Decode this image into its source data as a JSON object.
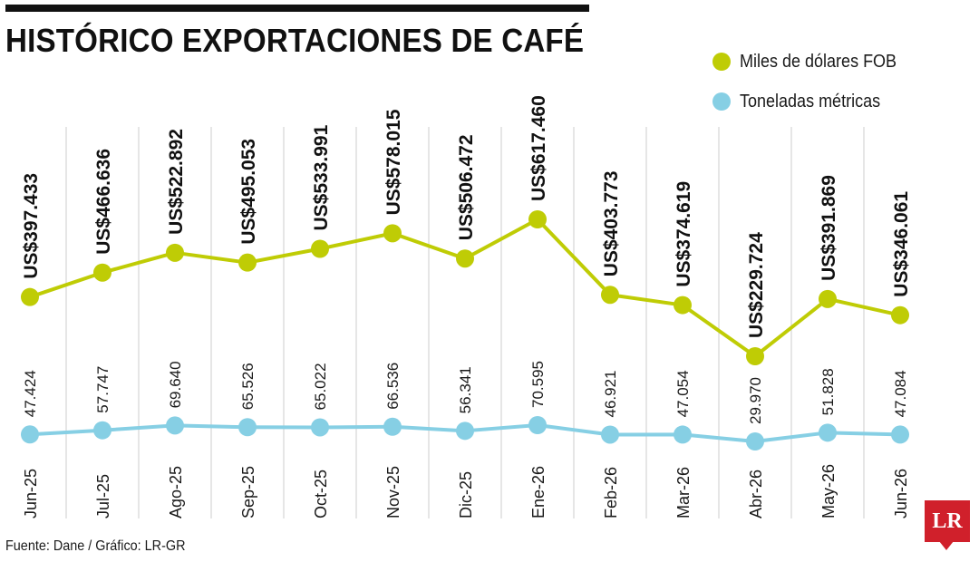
{
  "title": "HISTÓRICO EXPORTACIONES DE CAFÉ",
  "source": "Fuente: Dane / Gráfico: LR-GR",
  "logo_text": "LR",
  "colors": {
    "fob": "#bfcc05",
    "toneladas": "#86cfe4",
    "logo": "#d0202b",
    "gridline": "#cccccc"
  },
  "chart_data": {
    "type": "line",
    "title": "HISTÓRICO EXPORTACIONES DE CAFÉ",
    "categories": [
      "Jun-25",
      "Jul-25",
      "Ago-25",
      "Sep-25",
      "Oct-25",
      "Nov-25",
      "Dic-25",
      "Ene-26",
      "Feb-26",
      "Mar-26",
      "Abr-26",
      "May-26",
      "Jun-26"
    ],
    "series": [
      {
        "name": "Miles de dólares FOB",
        "values": [
          397433,
          466636,
          522892,
          495053,
          533991,
          578015,
          506472,
          617460,
          403773,
          374619,
          229724,
          391869,
          346061
        ],
        "labels": [
          "US$397.433",
          "US$466.636",
          "US$522.892",
          "US$495.053",
          "US$533.991",
          "US$578.015",
          "US$506.472",
          "US$617.460",
          "US$403.773",
          "US$374.619",
          "US$229.724",
          "US$391.869",
          "US$346.061"
        ]
      },
      {
        "name": "Toneladas métricas",
        "values": [
          47424,
          57747,
          69640,
          65526,
          65022,
          66536,
          56341,
          70595,
          46921,
          47054,
          29970,
          51828,
          47084
        ],
        "labels": [
          "47.424",
          "57.747",
          "69.640",
          "65.526",
          "65.022",
          "66.536",
          "56.341",
          "70.595",
          "46.921",
          "47.054",
          "29.970",
          "51.828",
          "47.084"
        ]
      }
    ],
    "legend_position": "top-right",
    "grid": "vertical"
  }
}
